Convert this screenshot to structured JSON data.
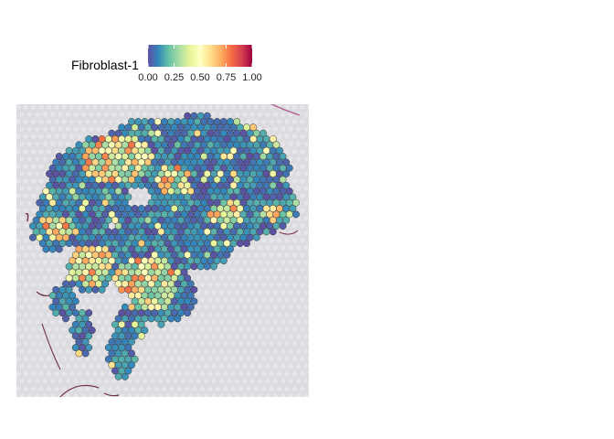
{
  "chart_data": {
    "type": "scatter",
    "title": "",
    "legend": {
      "title": "Fibroblast-1",
      "position": "top",
      "ticks": [
        "0.00",
        "0.25",
        "0.50",
        "0.75",
        "1.00"
      ],
      "range": [
        0,
        1
      ],
      "colormap": [
        "#5e4fa2",
        "#3288bd",
        "#66c2a5",
        "#abdda4",
        "#e6f598",
        "#ffffbf",
        "#fee08b",
        "#fdae61",
        "#f46d43",
        "#d53e4f",
        "#9e0142"
      ]
    },
    "background": "tissue histology image",
    "spot_outline_color": "#333333"
  }
}
